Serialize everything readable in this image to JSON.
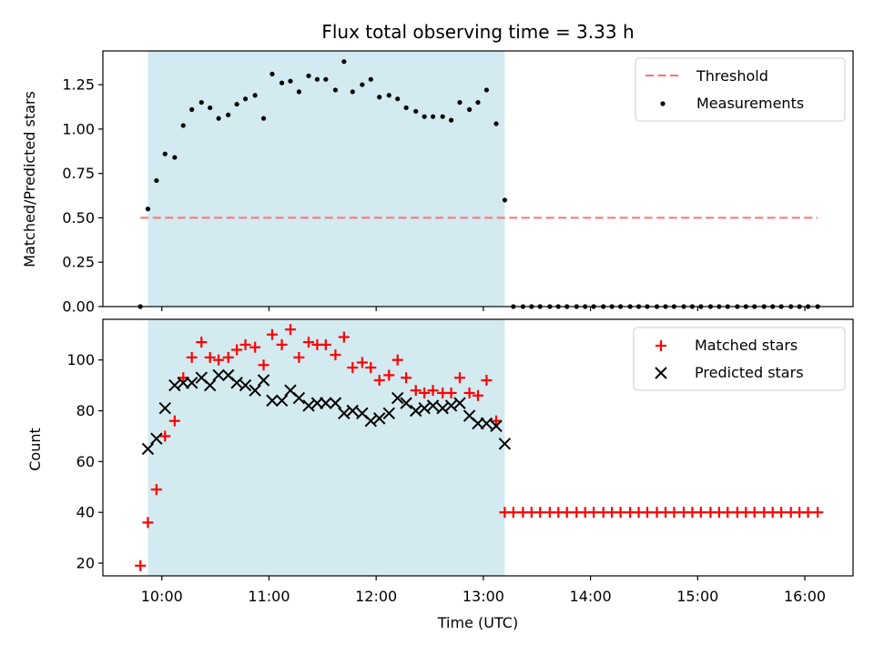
{
  "chart_data": {
    "type": "scatter",
    "title": "Flux total observing time = 3.33 h",
    "xlabel": "Time (UTC)",
    "x_ticks": [
      "10:00",
      "11:00",
      "12:00",
      "13:00",
      "14:00",
      "15:00",
      "16:00"
    ],
    "x_tick_hours": [
      10,
      11,
      12,
      13,
      14,
      15,
      16
    ],
    "xlim": [
      9.45,
      16.45
    ],
    "shaded_span": {
      "start": 9.87,
      "end": 13.2,
      "color": "#d3eaf0"
    },
    "panels": [
      {
        "ylabel": "Matched/Predicted stars",
        "ylim": [
          0,
          1.44
        ],
        "y_ticks": [
          "0.00",
          "0.25",
          "0.50",
          "0.75",
          "1.00",
          "1.25"
        ],
        "y_tick_values": [
          0,
          0.25,
          0.5,
          0.75,
          1.0,
          1.25
        ],
        "legend": {
          "position": "upper right",
          "entries": [
            "Threshold",
            "Measurements"
          ]
        },
        "series": [
          {
            "name": "Threshold",
            "kind": "line",
            "style": "dashed",
            "color": "#ff7070",
            "x": [
              9.8,
              16.12
            ],
            "y": [
              0.5,
              0.5
            ]
          },
          {
            "name": "Measurements",
            "kind": "dots",
            "color": "#000000",
            "x": [
              9.8,
              9.87,
              9.95,
              10.03,
              10.12,
              10.2,
              10.28,
              10.37,
              10.45,
              10.53,
              10.62,
              10.7,
              10.78,
              10.87,
              10.95,
              11.03,
              11.12,
              11.2,
              11.28,
              11.37,
              11.45,
              11.53,
              11.62,
              11.7,
              11.78,
              11.87,
              11.95,
              12.03,
              12.12,
              12.2,
              12.28,
              12.37,
              12.45,
              12.53,
              12.62,
              12.7,
              12.78,
              12.87,
              12.95,
              13.03,
              13.12,
              13.2,
              13.28,
              13.37,
              13.45,
              13.53,
              13.62,
              13.7,
              13.78,
              13.87,
              13.95,
              14.03,
              14.12,
              14.2,
              14.28,
              14.37,
              14.45,
              14.53,
              14.62,
              14.7,
              14.78,
              14.87,
              14.95,
              15.03,
              15.12,
              15.2,
              15.28,
              15.37,
              15.45,
              15.53,
              15.62,
              15.7,
              15.78,
              15.87,
              15.95,
              16.03,
              16.12
            ],
            "y": [
              0.0,
              0.55,
              0.71,
              0.86,
              0.84,
              1.02,
              1.11,
              1.15,
              1.12,
              1.06,
              1.08,
              1.14,
              1.17,
              1.19,
              1.06,
              1.31,
              1.26,
              1.27,
              1.21,
              1.3,
              1.28,
              1.28,
              1.22,
              1.38,
              1.21,
              1.25,
              1.28,
              1.18,
              1.19,
              1.17,
              1.12,
              1.1,
              1.07,
              1.07,
              1.07,
              1.05,
              1.15,
              1.11,
              1.15,
              1.22,
              1.03,
              0.6,
              0.0,
              0.0,
              0.0,
              0.0,
              0.0,
              0.0,
              0.0,
              0.0,
              0.0,
              0.0,
              0.0,
              0.0,
              0.0,
              0.0,
              0.0,
              0.0,
              0.0,
              0.0,
              0.0,
              0.0,
              0.0,
              0.0,
              0.0,
              0.0,
              0.0,
              0.0,
              0.0,
              0.0,
              0.0,
              0.0,
              0.0,
              0.0,
              0.0,
              0.0,
              0.0
            ]
          }
        ]
      },
      {
        "ylabel": "Count",
        "ylim": [
          15,
          116
        ],
        "y_ticks": [
          "20",
          "40",
          "60",
          "80",
          "100"
        ],
        "y_tick_values": [
          20,
          40,
          60,
          80,
          100
        ],
        "legend": {
          "position": "upper right",
          "entries": [
            "Matched stars",
            "Predicted stars"
          ]
        },
        "series": [
          {
            "name": "Matched stars",
            "kind": "plus",
            "color": "#ff0000",
            "x": [
              9.8,
              9.87,
              9.95,
              10.03,
              10.12,
              10.2,
              10.28,
              10.37,
              10.45,
              10.53,
              10.62,
              10.7,
              10.78,
              10.87,
              10.95,
              11.03,
              11.12,
              11.2,
              11.28,
              11.37,
              11.45,
              11.53,
              11.62,
              11.7,
              11.78,
              11.87,
              11.95,
              12.03,
              12.12,
              12.2,
              12.28,
              12.37,
              12.45,
              12.53,
              12.62,
              12.7,
              12.78,
              12.87,
              12.95,
              13.03,
              13.12,
              13.2,
              13.28,
              13.37,
              13.45,
              13.53,
              13.62,
              13.7,
              13.78,
              13.87,
              13.95,
              14.03,
              14.12,
              14.2,
              14.28,
              14.37,
              14.45,
              14.53,
              14.62,
              14.7,
              14.78,
              14.87,
              14.95,
              15.03,
              15.12,
              15.2,
              15.28,
              15.37,
              15.45,
              15.53,
              15.62,
              15.7,
              15.78,
              15.87,
              15.95,
              16.03,
              16.12
            ],
            "y": [
              19,
              36,
              49,
              70,
              76,
              93,
              101,
              107,
              101,
              100,
              101,
              104,
              106,
              105,
              98,
              110,
              106,
              112,
              101,
              107,
              106,
              106,
              102,
              109,
              97,
              99,
              97,
              92,
              94,
              100,
              93,
              88,
              87,
              88,
              87,
              87,
              93,
              87,
              86,
              92,
              76,
              40,
              40,
              40,
              40,
              40,
              40,
              40,
              40,
              40,
              40,
              40,
              40,
              40,
              40,
              40,
              40,
              40,
              40,
              40,
              40,
              40,
              40,
              40,
              40,
              40,
              40,
              40,
              40,
              40,
              40,
              40,
              40,
              40,
              40,
              40,
              40
            ]
          },
          {
            "name": "Predicted stars",
            "kind": "cross",
            "color": "#000000",
            "x": [
              9.87,
              9.95,
              10.03,
              10.12,
              10.2,
              10.28,
              10.37,
              10.45,
              10.53,
              10.62,
              10.7,
              10.78,
              10.87,
              10.95,
              11.03,
              11.12,
              11.2,
              11.28,
              11.37,
              11.45,
              11.53,
              11.62,
              11.7,
              11.78,
              11.87,
              11.95,
              12.03,
              12.12,
              12.2,
              12.28,
              12.37,
              12.45,
              12.53,
              12.62,
              12.7,
              12.78,
              12.87,
              12.95,
              13.03,
              13.12,
              13.2
            ],
            "y": [
              65,
              69,
              81,
              90,
              91,
              91,
              93,
              90,
              94,
              94,
              91,
              90,
              88,
              92,
              84,
              84,
              88,
              85,
              82,
              83,
              83,
              83,
              79,
              80,
              79,
              76,
              77,
              79,
              85,
              83,
              80,
              81,
              82,
              81,
              82,
              83,
              78,
              75,
              75,
              74,
              67
            ]
          }
        ]
      }
    ]
  }
}
